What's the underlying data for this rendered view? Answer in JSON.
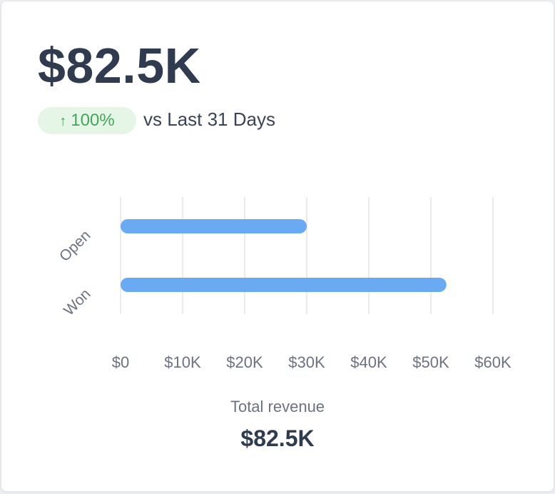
{
  "headline": "$82.5K",
  "badge": {
    "arrow": "↑",
    "change": "100%",
    "color": "#45a55a",
    "background": "#e5f6e7"
  },
  "comparison": "vs Last 31 Days",
  "footer": {
    "label": "Total revenue",
    "value": "$82.5K"
  },
  "chart_data": {
    "type": "bar",
    "orientation": "horizontal",
    "categories": [
      "Open",
      "Won"
    ],
    "values": [
      30000,
      52500
    ],
    "xlim": [
      0,
      60000
    ],
    "x_tick_values": [
      0,
      10000,
      20000,
      30000,
      40000,
      50000,
      60000
    ],
    "x_tick_labels": [
      "$0",
      "$10K",
      "$20K",
      "$30K",
      "$40K",
      "$50K",
      "$60K"
    ],
    "grid": true,
    "bar_color": "#6aaaf3",
    "grid_color": "#e2e5ea"
  }
}
